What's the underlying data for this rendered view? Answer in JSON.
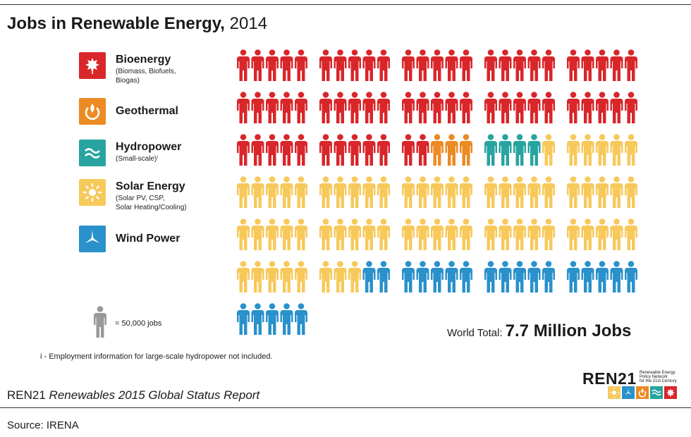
{
  "header": {
    "title_bold": "Jobs in Renewable Energy,",
    "title_year": " 2014"
  },
  "legend": [
    {
      "key": "bioenergy",
      "label": "Bioenergy",
      "sub": "(Biomass, Biofuels,\nBiogas)",
      "color": "#d9262a",
      "icon": "leaf-icon"
    },
    {
      "key": "geothermal",
      "label": "Geothermal",
      "sub": "",
      "color": "#ec8a24",
      "icon": "geothermal-icon"
    },
    {
      "key": "hydropower",
      "label": "Hydropower",
      "sub": "(Small-scale)ⁱ",
      "color": "#27a49f",
      "icon": "waves-icon"
    },
    {
      "key": "solar",
      "label": "Solar Energy",
      "sub": "(Solar PV, CSP,\nSolar Heating/Cooling)",
      "color": "#f7c95b",
      "icon": "sun-icon"
    },
    {
      "key": "wind",
      "label": "Wind Power",
      "sub": "",
      "color": "#2a91cb",
      "icon": "wind-turbine-icon"
    }
  ],
  "unit": {
    "label": "= 50,000 jobs",
    "color": "#999999"
  },
  "footnote": "i - Employment information for large-scale hydropower not included.",
  "total": {
    "label": "World Total:",
    "value": "7.7 Million Jobs"
  },
  "report": {
    "org": "REN21",
    "title": "Renewables 2015 Global Status Report"
  },
  "source": "Source: IRENA",
  "logo": {
    "name": "REN21",
    "tagline": "Renewable Energy\nPolicy Network\nfor the 21st Century"
  },
  "chart_data": {
    "type": "pictogram",
    "title": "Jobs in Renewable Energy, 2014",
    "unit_value": 50000,
    "unit_label": "= 50,000 jobs",
    "series": [
      {
        "name": "Bioenergy",
        "icons": 62,
        "color": "#d9262a"
      },
      {
        "name": "Geothermal",
        "icons": 3,
        "color": "#ec8a24"
      },
      {
        "name": "Hydropower",
        "icons": 4,
        "color": "#27a49f"
      },
      {
        "name": "Solar Energy",
        "icons": 64,
        "color": "#f7c95b"
      },
      {
        "name": "Wind Power",
        "icons": 22,
        "color": "#2a91cb"
      }
    ],
    "total_icons": 155,
    "total_label": "7.7 Million Jobs"
  }
}
